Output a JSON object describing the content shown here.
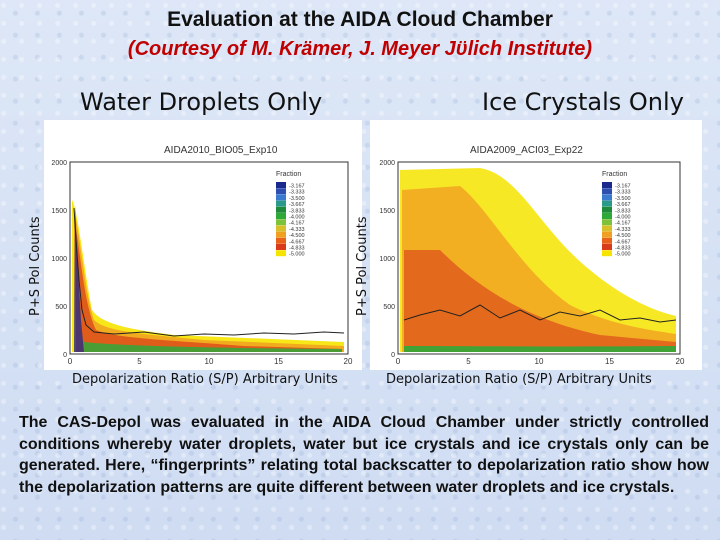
{
  "slide": {
    "title": "Evaluation at the AIDA Cloud Chamber",
    "subtitle": "(Courtesy of M. Krämer, J. Meyer Jϋlich Institute)",
    "body": "The CAS-Depol was evaluated in the AIDA Cloud Chamber under strictly controlled conditions whereby water droplets, water but ice crystals and ice crystals only can be generated. Here, “fingerprints” relating total backscatter to depolarization ratio show how the depolarization patterns are quite different between water droplets and ice crystals."
  },
  "left_panel": {
    "heading": "Water Droplets Only",
    "plot_title": "AIDA2010_BIO05_Exp10",
    "ylabel": "P+S Pol Counts",
    "xlabel": "Depolarization Ratio (S/P) Arbitrary Units",
    "xticks": [
      "0",
      "5",
      "10",
      "15",
      "20"
    ],
    "yticks": [
      "2000",
      "1500",
      "1000",
      "500",
      "0"
    ],
    "legend_title": "Fraction",
    "legend_values": [
      "-3.167",
      "-3.333",
      "-3.500",
      "-3.667",
      "-3.833",
      "-4.000",
      "-4.167",
      "-4.333",
      "-4.500",
      "-4.667",
      "-4.833",
      "-5.000"
    ]
  },
  "right_panel": {
    "heading": "Ice Crystals Only",
    "plot_title": "AIDA2009_ACI03_Exp22",
    "ylabel": "P+S Pol Counts",
    "xlabel": "Depolarization Ratio (S/P) Arbitrary Units",
    "xticks": [
      "0",
      "5",
      "10",
      "15",
      "20"
    ],
    "yticks": [
      "2000",
      "1500",
      "1000",
      "500",
      "0"
    ],
    "legend_title": "Fraction",
    "legend_values": [
      "-3.167",
      "-3.333",
      "-3.500",
      "-3.667",
      "-3.833",
      "-4.000",
      "-4.167",
      "-4.333",
      "-4.500",
      "-4.667",
      "-4.833",
      "-5.000"
    ]
  },
  "colors": {
    "legend_scale": [
      "#1a2a8c",
      "#2f4fb0",
      "#3a7bd0",
      "#2a9a8a",
      "#1f8a3a",
      "#2fa83a",
      "#7cc23a",
      "#d8c02a",
      "#f0a020",
      "#e8621a",
      "#d83a1a",
      "#f6e400"
    ],
    "subtitle": "#c00000"
  }
}
